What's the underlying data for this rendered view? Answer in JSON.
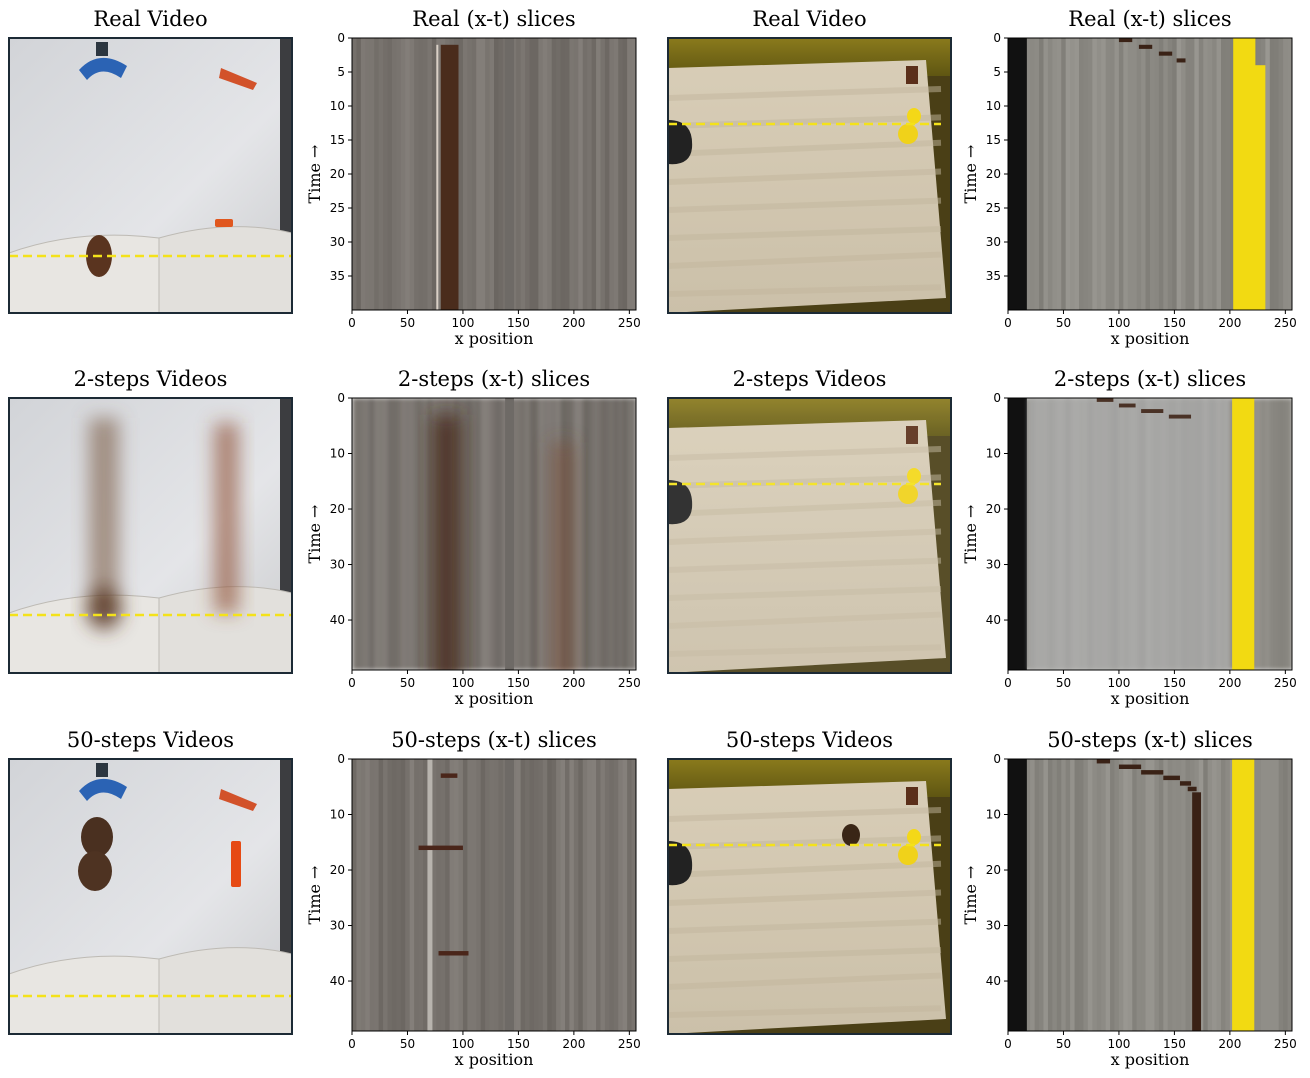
{
  "chart_data": [
    {
      "type": "heatmap",
      "row": 0,
      "col": 0,
      "kind": "video",
      "title": "Real Video",
      "scene": "wall",
      "slice_line": "dashed-yellow"
    },
    {
      "type": "heatmap",
      "row": 0,
      "col": 1,
      "kind": "slice",
      "title": "Real (x-t) slices",
      "scene": "wall",
      "variant": "real",
      "xlabel": "x position",
      "ylabel": "Time →",
      "xlim": [
        0,
        256
      ],
      "ylim": [
        0,
        40
      ],
      "xticks": [
        0,
        50,
        100,
        150,
        200,
        250
      ],
      "yticks": [
        0,
        5,
        10,
        15,
        20,
        25,
        30,
        35
      ]
    },
    {
      "type": "heatmap",
      "row": 0,
      "col": 2,
      "kind": "video",
      "title": "Real Video",
      "scene": "table",
      "slice_line": "dashed-yellow"
    },
    {
      "type": "heatmap",
      "row": 0,
      "col": 3,
      "kind": "slice",
      "title": "Real (x-t) slices",
      "scene": "table",
      "variant": "real",
      "xlabel": "x position",
      "ylabel": "Time →",
      "xlim": [
        0,
        256
      ],
      "ylim": [
        0,
        40
      ],
      "xticks": [
        0,
        50,
        100,
        150,
        200,
        250
      ],
      "yticks": [
        0,
        5,
        10,
        15,
        20,
        25,
        30,
        35
      ]
    },
    {
      "type": "heatmap",
      "row": 1,
      "col": 0,
      "kind": "video",
      "title": "2-steps Videos",
      "scene": "wall",
      "variant": "blur",
      "slice_line": "dashed-yellow"
    },
    {
      "type": "heatmap",
      "row": 1,
      "col": 1,
      "kind": "slice",
      "title": "2-steps (x-t) slices",
      "scene": "wall",
      "variant": "blur",
      "xlabel": "x position",
      "ylabel": "Time →",
      "xlim": [
        0,
        256
      ],
      "ylim": [
        0,
        49
      ],
      "xticks": [
        0,
        50,
        100,
        150,
        200,
        250
      ],
      "yticks": [
        0,
        10,
        20,
        30,
        40
      ]
    },
    {
      "type": "heatmap",
      "row": 1,
      "col": 2,
      "kind": "video",
      "title": "2-steps Videos",
      "scene": "table",
      "variant": "blur",
      "slice_line": "dashed-yellow"
    },
    {
      "type": "heatmap",
      "row": 1,
      "col": 3,
      "kind": "slice",
      "title": "2-steps (x-t) slices",
      "scene": "table",
      "variant": "blur",
      "xlabel": "x position",
      "ylabel": "Time →",
      "xlim": [
        0,
        256
      ],
      "ylim": [
        0,
        49
      ],
      "xticks": [
        0,
        50,
        100,
        150,
        200,
        250
      ],
      "yticks": [
        0,
        10,
        20,
        30,
        40
      ]
    },
    {
      "type": "heatmap",
      "row": 2,
      "col": 0,
      "kind": "video",
      "title": "50-steps Videos",
      "scene": "wall",
      "variant": "steps50",
      "slice_line": "dashed-yellow"
    },
    {
      "type": "heatmap",
      "row": 2,
      "col": 1,
      "kind": "slice",
      "title": "50-steps (x-t) slices",
      "scene": "wall",
      "variant": "steps50",
      "xlabel": "x position",
      "ylabel": "Time →",
      "xlim": [
        0,
        256
      ],
      "ylim": [
        0,
        49
      ],
      "xticks": [
        0,
        50,
        100,
        150,
        200,
        250
      ],
      "yticks": [
        0,
        10,
        20,
        30,
        40
      ]
    },
    {
      "type": "heatmap",
      "row": 2,
      "col": 2,
      "kind": "video",
      "title": "50-steps Videos",
      "scene": "table",
      "variant": "steps50",
      "slice_line": "dashed-yellow"
    },
    {
      "type": "heatmap",
      "row": 2,
      "col": 3,
      "kind": "slice",
      "title": "50-steps (x-t) slices",
      "scene": "table",
      "variant": "steps50",
      "xlabel": "x position",
      "ylabel": "Time →",
      "xlim": [
        0,
        256
      ],
      "ylim": [
        0,
        49
      ],
      "xticks": [
        0,
        50,
        100,
        150,
        200,
        250
      ],
      "yticks": [
        0,
        10,
        20,
        30,
        40
      ]
    }
  ]
}
